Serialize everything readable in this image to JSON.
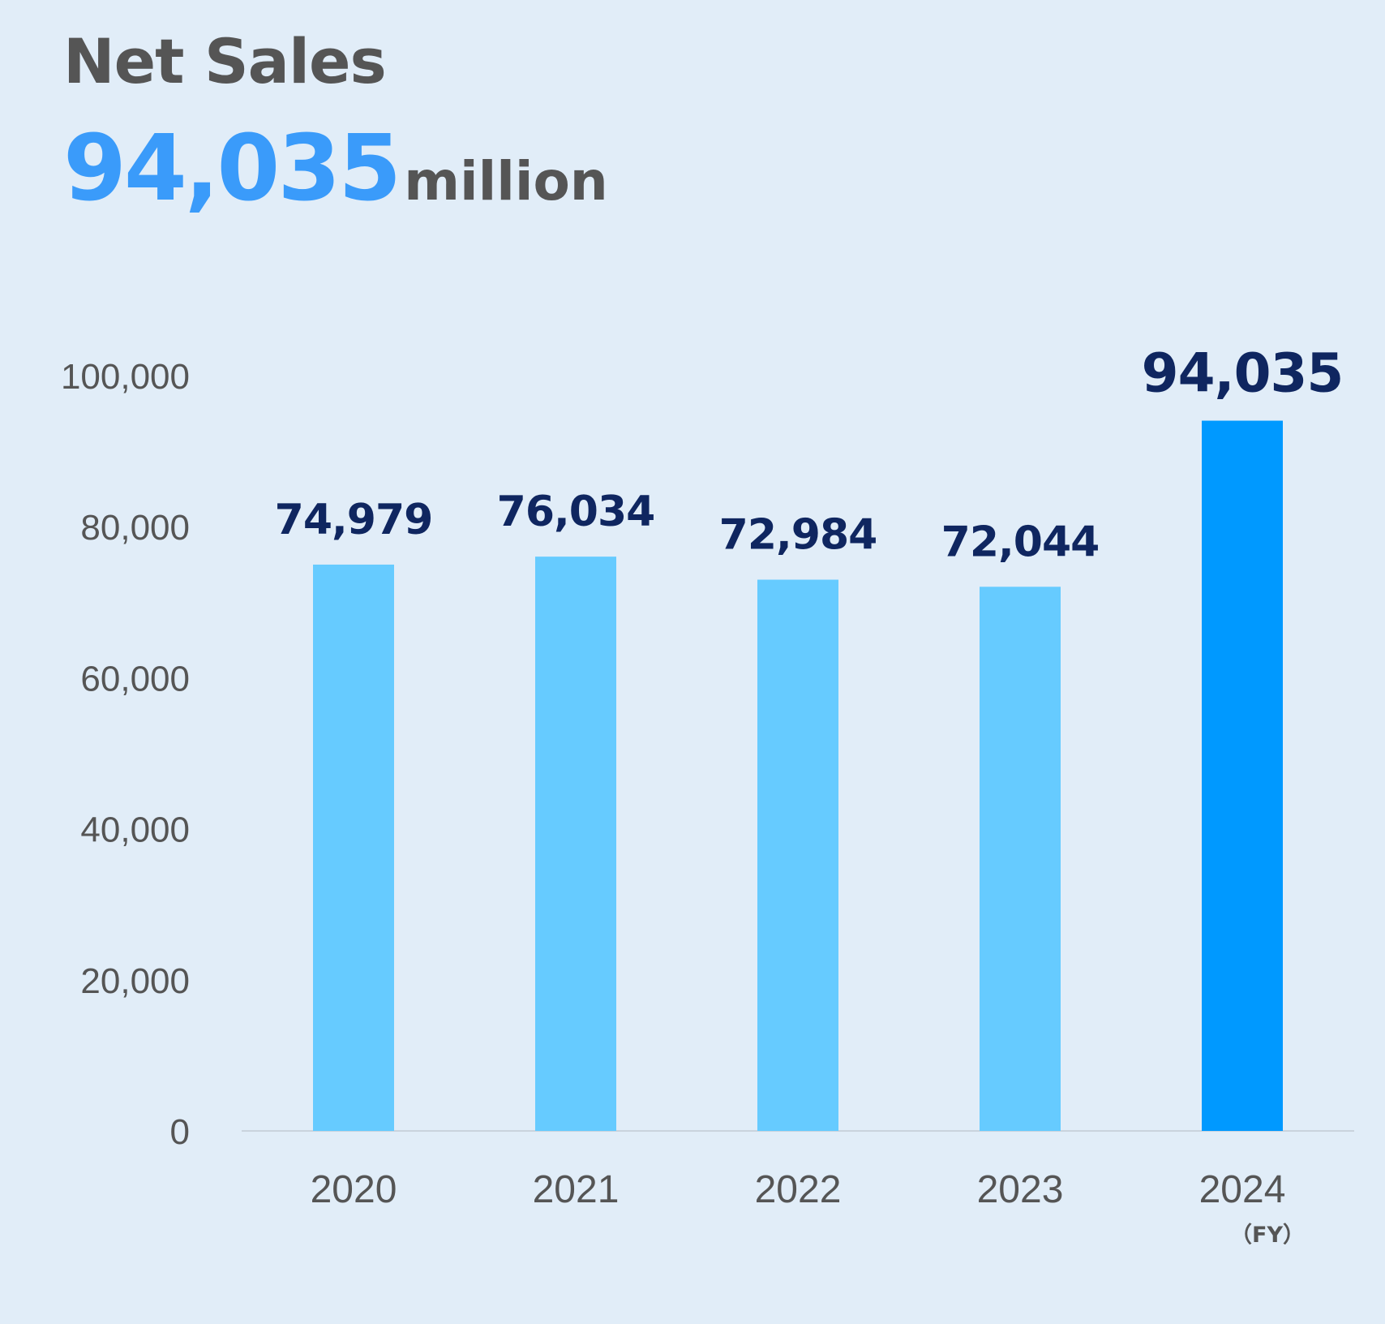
{
  "header": {
    "title": "Net Sales",
    "headline_value": "94,035",
    "headline_unit": "million"
  },
  "colors": {
    "background": "#e1edf8",
    "bar": "#66cbff",
    "bar_highlight": "#0099ff",
    "data_label": "#0f2660",
    "axis_text": "#555555",
    "headline": "#3a9bfa"
  },
  "chart_data": {
    "type": "bar",
    "categories": [
      "2020",
      "2021",
      "2022",
      "2023",
      "2024"
    ],
    "values": [
      74979,
      76034,
      72984,
      72044,
      94035
    ],
    "data_labels": [
      "74,979",
      "76,034",
      "72,984",
      "72,044",
      "94,035"
    ],
    "highlight_index": 4,
    "ylim": [
      0,
      100000
    ],
    "yticks": [
      0,
      20000,
      40000,
      60000,
      80000,
      100000
    ],
    "ytick_labels": [
      "0",
      "20,000",
      "40,000",
      "60,000",
      "80,000",
      "100,000"
    ],
    "x_unit_label": "（FY）",
    "grid": false
  }
}
